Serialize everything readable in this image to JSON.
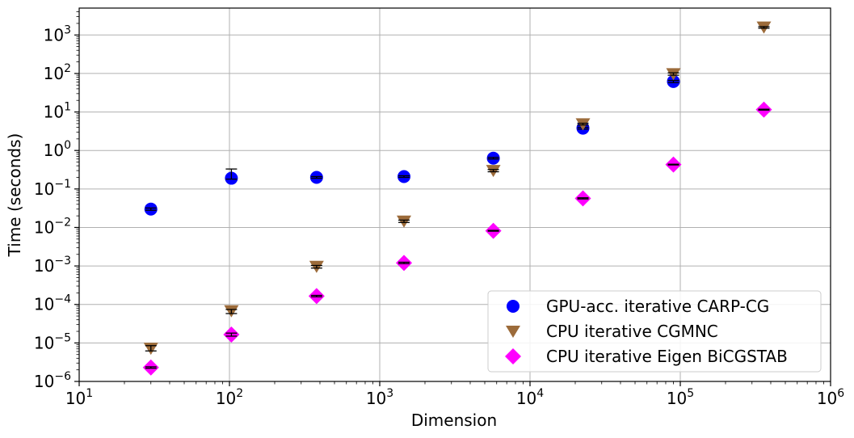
{
  "chart_data": {
    "type": "scatter",
    "xlabel": "Dimension",
    "ylabel": "Time (seconds)",
    "xscale": "log",
    "yscale": "log",
    "xlim": [
      10,
      1000000
    ],
    "ylim": [
      1e-06,
      5000
    ],
    "grid": true,
    "legend_position": "bottom-right",
    "x_ticks": [
      {
        "value": 10,
        "base": "10",
        "exp": "1"
      },
      {
        "value": 100,
        "base": "10",
        "exp": "2"
      },
      {
        "value": 1000,
        "base": "10",
        "exp": "3"
      },
      {
        "value": 10000,
        "base": "10",
        "exp": "4"
      },
      {
        "value": 100000,
        "base": "10",
        "exp": "5"
      },
      {
        "value": 1000000,
        "base": "10",
        "exp": "6"
      }
    ],
    "y_ticks": [
      {
        "value": 1e-06,
        "base": "10",
        "exp": "−6"
      },
      {
        "value": 1e-05,
        "base": "10",
        "exp": "−5"
      },
      {
        "value": 0.0001,
        "base": "10",
        "exp": "−4"
      },
      {
        "value": 0.001,
        "base": "10",
        "exp": "−3"
      },
      {
        "value": 0.01,
        "base": "10",
        "exp": "−2"
      },
      {
        "value": 0.1,
        "base": "10",
        "exp": "−1"
      },
      {
        "value": 1,
        "base": "10",
        "exp": "0"
      },
      {
        "value": 10,
        "base": "10",
        "exp": "1"
      },
      {
        "value": 100,
        "base": "10",
        "exp": "2"
      },
      {
        "value": 1000,
        "base": "10",
        "exp": "3"
      }
    ],
    "x": [
      30,
      103,
      380,
      1450,
      5700,
      22500,
      90000,
      360000
    ],
    "series": [
      {
        "name": "GPU-acc. iterative CARP-CG",
        "marker": "circle",
        "color": "#0000ff",
        "values": [
          0.03,
          0.19,
          0.2,
          0.21,
          0.63,
          3.8,
          62,
          null
        ],
        "err_low": [
          0.028,
          0.18,
          0.19,
          0.2,
          0.6,
          3.6,
          58,
          null
        ],
        "err_high": [
          0.032,
          0.33,
          0.21,
          0.22,
          0.66,
          4.0,
          66,
          null
        ]
      },
      {
        "name": "CPU iterative CGMNC",
        "marker": "triangle-down",
        "color": "#9c6b3a",
        "values": [
          7.2e-06,
          6.8e-05,
          0.00097,
          0.0145,
          0.3,
          4.9,
          98,
          1600
        ],
        "err_low": [
          6.2e-06,
          5.8e-05,
          0.00088,
          0.0135,
          0.28,
          4.6,
          90,
          1500
        ],
        "err_high": [
          8.5e-06,
          7.4e-05,
          0.00103,
          0.0155,
          0.32,
          5.1,
          104,
          1650
        ]
      },
      {
        "name": "CPU iterative Eigen BiCGSTAB",
        "marker": "diamond",
        "color": "#ff00ff",
        "values": [
          2.3e-06,
          1.65e-05,
          0.000165,
          0.0012,
          0.0082,
          0.057,
          0.43,
          11.5
        ],
        "err_low": [
          2.2e-06,
          1.5e-05,
          0.000158,
          0.00115,
          0.008,
          0.055,
          0.42,
          11.2
        ],
        "err_high": [
          2.4e-06,
          1.8e-05,
          0.000172,
          0.00125,
          0.0084,
          0.059,
          0.44,
          11.8
        ]
      }
    ]
  }
}
